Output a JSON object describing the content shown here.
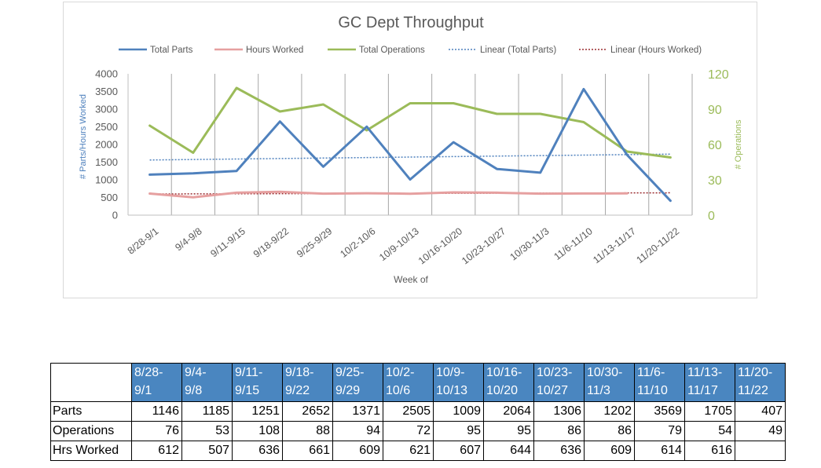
{
  "chart_data": {
    "type": "line",
    "title": "GC Dept Throughput",
    "xlabel": "Week of",
    "ylabel_left": "# Parts/Hours Worked",
    "ylabel_right": "# Operations",
    "ylim_left": [
      0,
      4000
    ],
    "ylim_right": [
      0,
      120
    ],
    "yticks_left": [
      "0",
      "500",
      "1000",
      "1500",
      "2000",
      "2500",
      "3000",
      "3500",
      "4000"
    ],
    "yticks_right": [
      "0",
      "30",
      "60",
      "90",
      "120"
    ],
    "grid": "vertical",
    "legend_position": "top",
    "categories": [
      "8/28-9/1",
      "9/4-9/8",
      "9/11-9/15",
      "9/18-9/22",
      "9/25-9/29",
      "10/2-10/6",
      "10/9-10/13",
      "10/16-10/20",
      "10/23-10/27",
      "10/30-11/3",
      "11/6-11/10",
      "11/13-11/17",
      "11/20-11/22"
    ],
    "series": [
      {
        "name": "Total Parts",
        "axis": "left",
        "color": "#4f81bd",
        "values": [
          1146,
          1185,
          1251,
          2652,
          1371,
          2505,
          1009,
          2064,
          1306,
          1202,
          3569,
          1705,
          407
        ]
      },
      {
        "name": "Hours Worked",
        "axis": "left",
        "color": "#e6a0a0",
        "values": [
          612,
          507,
          636,
          661,
          609,
          621,
          607,
          644,
          636,
          609,
          614,
          616,
          null
        ]
      },
      {
        "name": "Total Operations",
        "axis": "right",
        "color": "#9bbb59",
        "values": [
          76,
          53,
          108,
          88,
          94,
          72,
          95,
          95,
          86,
          86,
          79,
          54,
          49
        ]
      }
    ],
    "trendlines": [
      {
        "name": "Linear (Total Parts)",
        "color": "#4f81bd",
        "style": "dotted"
      },
      {
        "name": "Linear (Hours Worked)",
        "color": "#9b2d30",
        "style": "dotted"
      }
    ]
  },
  "table": {
    "headers": [
      [
        "8/28-",
        "9/1"
      ],
      [
        "9/4-",
        "9/8"
      ],
      [
        "9/11-",
        "9/15"
      ],
      [
        "9/18-",
        "9/22"
      ],
      [
        "9/25-",
        "9/29"
      ],
      [
        "10/2-",
        "10/6"
      ],
      [
        "10/9-",
        "10/13"
      ],
      [
        "10/16-",
        "10/20"
      ],
      [
        "10/23-",
        "10/27"
      ],
      [
        "10/30-",
        "11/3"
      ],
      [
        "11/6-",
        "11/10"
      ],
      [
        "11/13-",
        "11/17"
      ],
      [
        "11/20-",
        "11/22"
      ]
    ],
    "rows": [
      {
        "label": "Parts",
        "values": [
          "1146",
          "1185",
          "1251",
          "2652",
          "1371",
          "2505",
          "1009",
          "2064",
          "1306",
          "1202",
          "3569",
          "1705",
          "407"
        ]
      },
      {
        "label": "Operations",
        "values": [
          "76",
          "53",
          "108",
          "88",
          "94",
          "72",
          "95",
          "95",
          "86",
          "86",
          "79",
          "54",
          "49"
        ]
      },
      {
        "label": "Hrs Worked",
        "values": [
          "612",
          "507",
          "636",
          "661",
          "609",
          "621",
          "607",
          "644",
          "636",
          "609",
          "614",
          "616",
          ""
        ]
      }
    ]
  }
}
